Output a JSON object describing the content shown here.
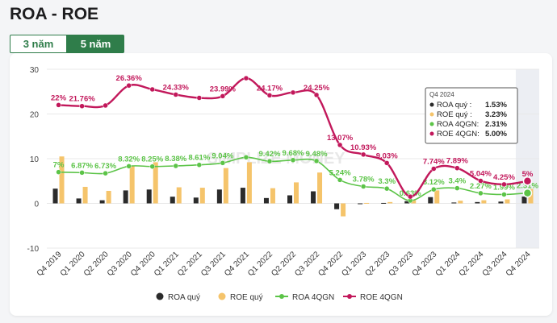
{
  "page": {
    "title": "ROA - ROE"
  },
  "tabs": [
    {
      "label": "3 năm",
      "active": false
    },
    {
      "label": "5 năm",
      "active": true
    }
  ],
  "watermark": "SIMPLIZE MONEY",
  "colors": {
    "roa_q": "#2b2b2b",
    "roe_q": "#f5c46b",
    "roa_4q": "#5cc448",
    "roe_4q": "#c2185b"
  },
  "tooltip": {
    "title": "Q4 2024",
    "rows": [
      {
        "label": "ROA quý :",
        "value": "1.53%",
        "color": "#2b2b2b"
      },
      {
        "label": "ROE quý :",
        "value": "3.23%",
        "color": "#f5c46b"
      },
      {
        "label": "ROA 4QGN:",
        "value": "2.31%",
        "color": "#5cc448"
      },
      {
        "label": "ROE 4QGN:",
        "value": "5.00%",
        "color": "#c2185b"
      }
    ]
  },
  "chart_data": {
    "type": "bar+line",
    "categories": [
      "Q4 2019",
      "Q1 2020",
      "Q2 2020",
      "Q3 2020",
      "Q4 2020",
      "Q1 2021",
      "Q2 2021",
      "Q3 2021",
      "Q4 2021",
      "Q1 2022",
      "Q2 2022",
      "Q3 2022",
      "Q4 2022",
      "Q1 2023",
      "Q2 2023",
      "Q3 2023",
      "Q4 2023",
      "Q1 2024",
      "Q2 2024",
      "Q3 2024",
      "Q4 2024"
    ],
    "ylim": [
      -10,
      30
    ],
    "yticks": [
      -10,
      0,
      10,
      20,
      30
    ],
    "grid": true,
    "legend_position": "bottom",
    "highlight_category": "Q4 2024",
    "series": [
      {
        "name": "ROA quý",
        "type": "bar",
        "values": [
          3.3,
          1.1,
          0.7,
          2.9,
          3.1,
          1.5,
          1.3,
          3.1,
          3.5,
          1.2,
          1.8,
          2.7,
          -1.3,
          0.0,
          0.1,
          0.5,
          1.4,
          0.2,
          0.3,
          0.4,
          1.53
        ]
      },
      {
        "name": "ROE quý",
        "type": "bar",
        "values": [
          10.5,
          3.7,
          2.8,
          8.4,
          9.2,
          3.6,
          3.5,
          7.9,
          9.2,
          3.4,
          4.7,
          6.9,
          -2.9,
          0.1,
          0.3,
          0.7,
          2.9,
          0.6,
          0.7,
          0.9,
          3.23
        ]
      },
      {
        "name": "ROA 4QGN",
        "type": "line",
        "values": [
          7.0,
          6.87,
          6.73,
          8.32,
          8.25,
          8.38,
          8.61,
          9.04,
          10.3,
          9.42,
          9.68,
          9.48,
          5.24,
          3.78,
          3.3,
          0.63,
          3.12,
          3.4,
          2.27,
          1.99,
          2.31
        ],
        "labels": [
          "7%",
          "6.87%",
          "6.73%",
          "8.32%",
          "8.25%",
          "8.38%",
          "8.61%",
          "9.04%",
          "",
          "9.42%",
          "9.68%",
          "9.48%",
          "5.24%",
          "3.78%",
          "3.3%",
          "0.63%",
          "3.12%",
          "3.4%",
          "2.27%",
          "1.99%",
          "2.31%"
        ]
      },
      {
        "name": "ROE 4QGN",
        "type": "line",
        "values": [
          22.0,
          21.76,
          21.9,
          26.36,
          25.5,
          24.33,
          23.6,
          23.99,
          28.0,
          24.17,
          24.8,
          24.25,
          13.07,
          10.93,
          9.03,
          1.5,
          7.74,
          7.89,
          5.04,
          4.25,
          5.0
        ],
        "labels": [
          "22%",
          "21.76%",
          "",
          "26.36%",
          "",
          "24.33%",
          "",
          "23.99%",
          "",
          "24.17%",
          "",
          "24.25%",
          "13.07%",
          "10.93%",
          "9.03%",
          "",
          "7.74%",
          "7.89%",
          "5.04%",
          "4.25%",
          "5%"
        ]
      }
    ]
  }
}
